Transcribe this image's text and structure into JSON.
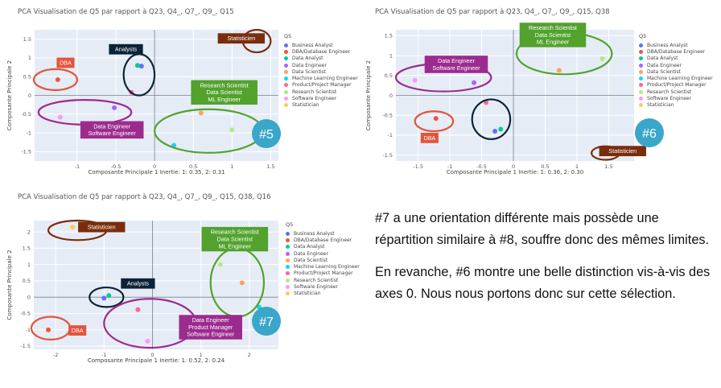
{
  "colors": {
    "plot_bg": "#e5ecf6",
    "grid": "#ffffff",
    "zero_line": "#6e7c8d",
    "number_badge": "#3aa6c9",
    "label_colors": {
      "DBA": "#e2553a",
      "Analysts": "#0c2336",
      "Data Engineer": "#9c2b8e",
      "Statisticien": "#7a2d0c",
      "Research Scientist": "#52a22d"
    }
  },
  "legend": {
    "title": "Q5",
    "items": [
      {
        "label": "Business Analyst",
        "color": "#636efa"
      },
      {
        "label": "DBA/Database Engineer",
        "color": "#ef553b"
      },
      {
        "label": "Data Analyst",
        "color": "#00cc96"
      },
      {
        "label": "Data Engineer",
        "color": "#ab63fa"
      },
      {
        "label": "Data Scientist",
        "color": "#ffa15a"
      },
      {
        "label": "Machine Learning Engineer",
        "color": "#19d3f3"
      },
      {
        "label": "Product/Project Manager",
        "color": "#ff6692"
      },
      {
        "label": "Research Scientist",
        "color": "#b6e880"
      },
      {
        "label": "Software Engineer",
        "color": "#ff97ff"
      },
      {
        "label": "Statistician",
        "color": "#fecb52"
      }
    ]
  },
  "note": {
    "paragraph_1": "#7 a une orientation différente mais possède une répartition similaire à #8, souffre donc des mêmes limites.",
    "paragraph_2": "En revanche, #6 montre une belle distinction vis-à-vis des axes 0. Nous nous portons donc sur cette sélection."
  },
  "chart_data": [
    {
      "type": "scatter",
      "title": "PCA Visualisation de Q5 par rapport à Q23, Q4_, Q7_, Q9_, Q15",
      "xlabel": "Composante Principale 1 Inertie: 1: 0.35, 2: 0.31",
      "ylabel": "Composante Principale 2",
      "xlim": [
        -1.55,
        1.6
      ],
      "ylim": [
        -1.75,
        1.75
      ],
      "xticks": [
        -1,
        -0.5,
        0,
        0.5,
        1,
        1.5
      ],
      "yticks": [
        -1.5,
        -1,
        -0.5,
        0,
        0.5,
        1,
        1.5
      ],
      "badge": "#5",
      "points": [
        {
          "name": "Business Analyst",
          "x": -0.17,
          "y": 0.78
        },
        {
          "name": "DBA/Database Engineer",
          "x": -1.25,
          "y": 0.42
        },
        {
          "name": "Data Analyst",
          "x": -0.22,
          "y": 0.8
        },
        {
          "name": "Data Engineer",
          "x": -0.52,
          "y": -0.33
        },
        {
          "name": "Data Scientist",
          "x": 0.6,
          "y": -0.47
        },
        {
          "name": "Machine Learning Engineer",
          "x": 0.25,
          "y": -1.33
        },
        {
          "name": "Product/Project Manager",
          "x": -0.3,
          "y": 0.08
        },
        {
          "name": "Research Scientist",
          "x": 1.0,
          "y": -0.92
        },
        {
          "name": "Software Engineer",
          "x": -1.22,
          "y": -0.58
        },
        {
          "name": "Statistician",
          "x": 1.31,
          "y": 1.52
        }
      ],
      "annotations": [
        {
          "text": "DBA",
          "colorKey": "DBA",
          "x": -1.15,
          "y": 0.87
        },
        {
          "text": "Analysts",
          "colorKey": "Analysts",
          "x": -0.37,
          "y": 1.23
        },
        {
          "text": "Data Engineer\nSoftware Engineer",
          "colorKey": "Data Engineer",
          "x": -0.55,
          "y": -0.92
        },
        {
          "text": "Statisticien",
          "colorKey": "Statisticien",
          "x": 1.12,
          "y": 1.52
        },
        {
          "text": "Research Scientist\nData Scientist\nML Engineer",
          "colorKey": "Research Scientist",
          "x": 0.9,
          "y": 0.08
        }
      ]
    },
    {
      "type": "scatter",
      "title": "PCA Visualisation de Q5 par rapport à Q23, Q4_, Q7_, Q9_, Q15, Q38",
      "xlabel": "Composante Principale 1 Inertie: 1: 0.36, 2: 0.30",
      "ylabel": "Composante Principale 2",
      "xlim": [
        -1.85,
        1.9
      ],
      "ylim": [
        -1.65,
        1.65
      ],
      "xticks": [
        -1.5,
        -1,
        -0.5,
        0,
        0.5,
        1,
        1.5
      ],
      "yticks": [
        -1.5,
        -1,
        -0.5,
        0,
        0.5,
        1,
        1.5
      ],
      "badge": "#6",
      "points": [
        {
          "name": "Business Analyst",
          "x": -0.29,
          "y": -0.9
        },
        {
          "name": "DBA/Database Engineer",
          "x": -1.22,
          "y": -0.58
        },
        {
          "name": "Data Analyst",
          "x": -0.2,
          "y": -0.85
        },
        {
          "name": "Data Engineer",
          "x": -0.62,
          "y": 0.32
        },
        {
          "name": "Data Scientist",
          "x": 0.72,
          "y": 0.63
        },
        {
          "name": "Machine Learning Engineer",
          "x": 0.15,
          "y": 1.38
        },
        {
          "name": "Product/Project Manager",
          "x": -0.43,
          "y": -0.18
        },
        {
          "name": "Research Scientist",
          "x": 1.4,
          "y": 0.92
        },
        {
          "name": "Software Engineer",
          "x": -1.55,
          "y": 0.38
        },
        {
          "name": "Statistician",
          "x": 1.45,
          "y": -1.4
        }
      ],
      "annotations": [
        {
          "text": "Data Engineer\nSoftware Engineer",
          "colorKey": "Data Engineer",
          "x": -0.9,
          "y": 0.78
        },
        {
          "text": "DBA",
          "colorKey": "DBA",
          "x": -1.32,
          "y": -1.07
        },
        {
          "text": "Research Scientist\nData Scientist\nML Engineer",
          "colorKey": "Research Scientist",
          "x": 0.62,
          "y": 1.52
        },
        {
          "text": "Statisticien",
          "colorKey": "Statisticien",
          "x": 1.72,
          "y": -1.4
        }
      ]
    },
    {
      "type": "scatter",
      "title": "PCA Visualisation de Q5 par rapport à Q23, Q4_, Q7_, Q9_, Q15, Q38, Q16",
      "xlabel": "Composante Principale 1 Inertie: 1: 0.52, 2: 0.24",
      "ylabel": "Composante Principale 2",
      "xlim": [
        -2.45,
        2.6
      ],
      "ylim": [
        -1.6,
        2.35
      ],
      "xticks": [
        -2,
        -1,
        0,
        1,
        2
      ],
      "yticks": [
        -1.5,
        -1,
        -0.5,
        0,
        0.5,
        1,
        1.5,
        2
      ],
      "badge": "#7",
      "points": [
        {
          "name": "Business Analyst",
          "x": -1.0,
          "y": -0.03
        },
        {
          "name": "DBA/Database Engineer",
          "x": -2.15,
          "y": -1.0
        },
        {
          "name": "Data Analyst",
          "x": -0.9,
          "y": 0.05
        },
        {
          "name": "Data Engineer",
          "x": 0.6,
          "y": -0.7
        },
        {
          "name": "Data Scientist",
          "x": 1.85,
          "y": 0.44
        },
        {
          "name": "Machine Learning Engineer",
          "x": 2.2,
          "y": -0.3
        },
        {
          "name": "Product/Project Manager",
          "x": -0.3,
          "y": -0.38
        },
        {
          "name": "Research Scientist",
          "x": 1.4,
          "y": 1.0
        },
        {
          "name": "Software Engineer",
          "x": -0.1,
          "y": -1.35
        },
        {
          "name": "Statistician",
          "x": -1.65,
          "y": 2.15
        }
      ],
      "annotations": [
        {
          "text": "Statisticien",
          "colorKey": "Statisticien",
          "x": -1.05,
          "y": 2.15
        },
        {
          "text": "Research Scientist\nData Scientist\nML Engineer",
          "colorKey": "Research Scientist",
          "x": 1.7,
          "y": 1.78
        },
        {
          "text": "Analysts",
          "colorKey": "Analysts",
          "x": -0.3,
          "y": 0.42
        },
        {
          "text": "DBA",
          "colorKey": "DBA",
          "x": -1.55,
          "y": -1.02
        },
        {
          "text": "Data Engineer\nProduct Manager\nSoftware Engineer",
          "colorKey": "Data Engineer",
          "x": 1.2,
          "y": -0.92
        }
      ]
    }
  ]
}
